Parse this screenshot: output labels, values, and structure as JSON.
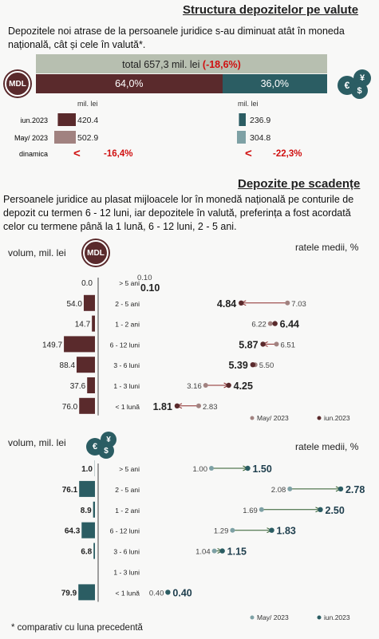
{
  "section1": {
    "title": "Structura depozitelor pe valute",
    "text": "Depozitele noi atrase de la persoanele juridice s-au diminuat atât în moneda națională, cât și cele în valută*.",
    "total_label": "total 657,3 mil. lei",
    "total_change": "(-18,6%)",
    "mdl_share": 64.0,
    "fx_share": 36.0,
    "mdl_share_label": "64,0%",
    "fx_share_label": "36,0%",
    "mdl_badge": "MDL",
    "unit_mdl": "mil. lei",
    "unit_fx": "mil. lei",
    "row_labels": [
      "iun.2023",
      "May/ 2023",
      "dinamica"
    ],
    "mdl_values": [
      420.4,
      502.9
    ],
    "fx_values": [
      236.9,
      304.8
    ],
    "mdl_value_labels": [
      "420.4",
      "502.9"
    ],
    "fx_value_labels": [
      "236.9",
      "304.8"
    ],
    "mdl_dynamics": "-16,4%",
    "fx_dynamics": "-22,3%",
    "arrow": "<"
  },
  "section2": {
    "title": "Depozite pe scadențe",
    "text": "Persoanele juridice au plasat mijloacele lor în monedă națională pe conturile de depozit cu termen 6 - 12 luni, iar depozitele în valută, preferința a fost acordată celor cu termene până la 1 lună, 6 - 12 luni, 2 - 5 ani."
  },
  "colors": {
    "mdl_dark": "#5a2a2c",
    "mdl_light": "#a18280",
    "fx_dark": "#2b5d63",
    "fx_light": "#7ea1a5",
    "total_bar": "#b7bfb0",
    "negative": "#d01010"
  },
  "chart_data": [
    {
      "type": "bar",
      "currency": "MDL",
      "volume_label": "volum, mil. lei",
      "rates_label": "ratele medii, %",
      "categories": [
        "> 5 ani",
        "2 - 5 ani",
        "1 - 2 ani",
        "6 - 12 luni",
        "3 - 6 luni",
        "1 - 3 luni",
        "< 1 lună"
      ],
      "volume": [
        0.0,
        54.0,
        14.7,
        149.7,
        88.4,
        37.6,
        76.0
      ],
      "volume_labels": [
        "0.0",
        "54.0",
        "14.7",
        "149.7",
        "88.4",
        "37.6",
        "76.0"
      ],
      "rates_may": [
        0.1,
        7.03,
        6.22,
        6.51,
        5.5,
        3.16,
        2.83
      ],
      "rates_may_labels": [
        "0.10",
        "7.03",
        "6.22",
        "6.51",
        "5.50",
        "3.16",
        "2.83"
      ],
      "rates_jun": [
        0.1,
        4.84,
        6.44,
        5.87,
        5.39,
        4.25,
        1.81
      ],
      "rates_jun_labels": [
        "0.10",
        "4.84",
        "6.44",
        "5.87",
        "5.39",
        "4.25",
        "1.81"
      ],
      "legend": [
        "May/ 2023",
        "iun.2023"
      ]
    },
    {
      "type": "bar",
      "currency": "FX",
      "volume_label": "volum, mil. lei",
      "rates_label": "ratele medii, %",
      "categories": [
        "> 5 ani",
        "2 - 5 ani",
        "1 - 2 ani",
        "6 - 12 luni",
        "3 - 6 luni",
        "1 - 3 luni",
        "< 1 lună"
      ],
      "volume": [
        1.0,
        76.1,
        8.9,
        64.3,
        6.8,
        null,
        79.9
      ],
      "volume_labels": [
        "1.0",
        "76.1",
        "8.9",
        "64.3",
        "6.8",
        "",
        "79.9"
      ],
      "rates_may": [
        1.0,
        2.08,
        1.69,
        1.29,
        1.04,
        null,
        0.4
      ],
      "rates_may_labels": [
        "1.00",
        "2.08",
        "1.69",
        "1.29",
        "1.04",
        "",
        "0.40"
      ],
      "rates_jun": [
        1.5,
        2.78,
        2.5,
        1.83,
        1.15,
        null,
        0.4
      ],
      "rates_jun_labels": [
        "1.50",
        "2.78",
        "2.50",
        "1.83",
        "1.15",
        "",
        "0.40"
      ],
      "legend": [
        "May/ 2023",
        "iun.2023"
      ]
    }
  ],
  "footnote": "* comparativ cu luna precedentă"
}
